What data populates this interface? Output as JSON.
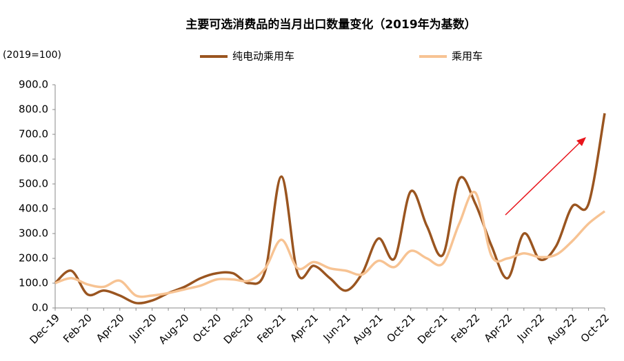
{
  "chart_data": {
    "type": "line",
    "title": "主要可选消费品的当月出口数量变化（2019年为基数）",
    "y_axis_label": "(2019=100)",
    "categories": [
      "Dec-19",
      null,
      "Feb-20",
      null,
      "Apr-20",
      null,
      "Jun-20",
      null,
      "Aug-20",
      null,
      "Oct-20",
      null,
      "Dec-20",
      null,
      "Feb-21",
      null,
      "Apr-21",
      null,
      "Jun-21",
      null,
      "Aug-21",
      null,
      "Oct-21",
      null,
      "Dec-21",
      null,
      "Feb-22",
      null,
      "Apr-22",
      null,
      "Jun-22",
      null,
      "Aug-22",
      null,
      "Oct-22"
    ],
    "series": [
      {
        "name": "纯电动乘用车",
        "color": "#9a5520",
        "values": [
          100,
          150,
          55,
          70,
          50,
          20,
          30,
          60,
          85,
          120,
          140,
          140,
          100,
          150,
          530,
          140,
          170,
          120,
          70,
          140,
          280,
          200,
          470,
          330,
          215,
          520,
          420,
          250,
          120,
          300,
          195,
          250,
          410,
          420,
          785
        ]
      },
      {
        "name": "乘用车",
        "color": "#f7c393",
        "values": [
          100,
          120,
          95,
          85,
          110,
          50,
          50,
          60,
          75,
          90,
          115,
          115,
          110,
          160,
          275,
          160,
          185,
          160,
          150,
          135,
          190,
          165,
          230,
          200,
          180,
          340,
          465,
          210,
          200,
          220,
          205,
          215,
          270,
          340,
          390
        ]
      }
    ],
    "ylim": [
      0,
      900
    ],
    "yticks": [
      {
        "value": 0,
        "label": "0.0"
      },
      {
        "value": 100,
        "label": "100.0"
      },
      {
        "value": 200,
        "label": "200.0"
      },
      {
        "value": 300,
        "label": "300.0"
      },
      {
        "value": 400,
        "label": "400.0"
      },
      {
        "value": 500,
        "label": "500.0"
      },
      {
        "value": 600,
        "label": "600.0"
      },
      {
        "value": 700,
        "label": "700.0"
      },
      {
        "value": 800,
        "label": "800.0"
      },
      {
        "value": 900,
        "label": "900.0"
      }
    ],
    "grid": false,
    "smooth": true,
    "legend": "top"
  }
}
